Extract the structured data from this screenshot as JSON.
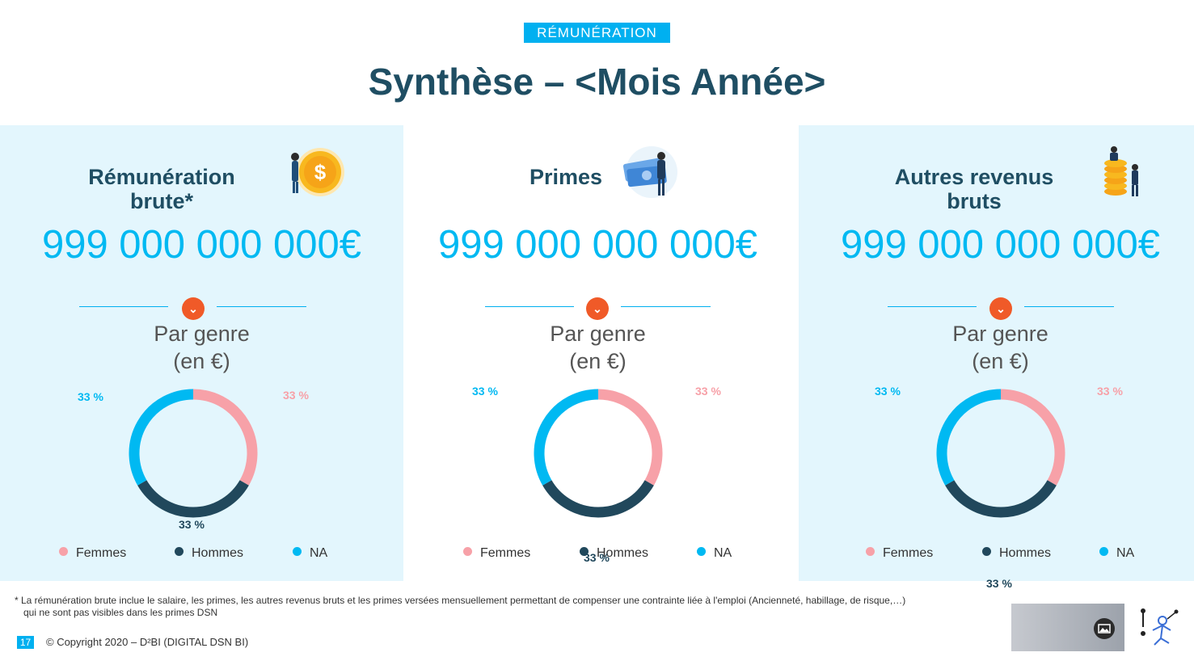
{
  "header": {
    "tag": "RÉMUNÉRATION",
    "title": "Synthèse – <Mois Année>"
  },
  "panels": [
    {
      "title_line1": "Rémunération",
      "title_line2": "brute*",
      "value": "999 000 000 000€",
      "subtitle_line1": "Par genre",
      "subtitle_line2": "(en €)",
      "donut": {
        "femmes": "33 %",
        "hommes": "33 %",
        "na": "33 %"
      },
      "legend": [
        "Femmes",
        "Hommes",
        "NA"
      ],
      "illustration": "money-coin-illustration"
    },
    {
      "title_line1": "Primes",
      "title_line2": "",
      "value": "999 000 000 000€",
      "subtitle_line1": "Par genre",
      "subtitle_line2": "(en €)",
      "donut": {
        "femmes": "33 %",
        "hommes": "33 %",
        "na": "33 %"
      },
      "legend": [
        "Femmes",
        "Hommes",
        "NA"
      ],
      "illustration": "banknotes-illustration"
    },
    {
      "title_line1": "Autres revenus",
      "title_line2": "bruts",
      "value": "999 000 000 000€",
      "subtitle_line1": "Par genre",
      "subtitle_line2": "(en €)",
      "donut": {
        "femmes": "33 %",
        "hommes": "33 %",
        "na": "33 %"
      },
      "legend": [
        "Femmes",
        "Hommes",
        "NA"
      ],
      "illustration": "coin-stack-illustration"
    }
  ],
  "chart_data": [
    {
      "type": "pie",
      "categories": [
        "Femmes",
        "Hommes",
        "NA"
      ],
      "values": [
        33,
        33,
        33
      ]
    },
    {
      "type": "pie",
      "categories": [
        "Femmes",
        "Hommes",
        "NA"
      ],
      "values": [
        33,
        33,
        33
      ]
    },
    {
      "type": "pie",
      "categories": [
        "Femmes",
        "Hommes",
        "NA"
      ],
      "values": [
        33,
        33,
        33
      ]
    }
  ],
  "colors": {
    "femmes": "#f7a1a8",
    "hommes": "#21485c",
    "na": "#00b9f2",
    "accent": "#00b0f0",
    "badge": "#f05a28"
  },
  "footer": {
    "footnote_line1": "*  La rémunération brute inclue le salaire, les primes, les autres revenus bruts et les primes versées mensuellement permettant de compenser une contrainte liée à l'emploi (Ancienneté, habillage, de risque,…)",
    "footnote_line2": "qui ne sont pas visibles dans les primes DSN",
    "page_number": "17",
    "copyright": "© Copyright 2020 – D²BI (DIGITAL DSN BI)"
  },
  "icons": {
    "image_placeholder": "image-icon",
    "logo": "d2bi-logo"
  }
}
